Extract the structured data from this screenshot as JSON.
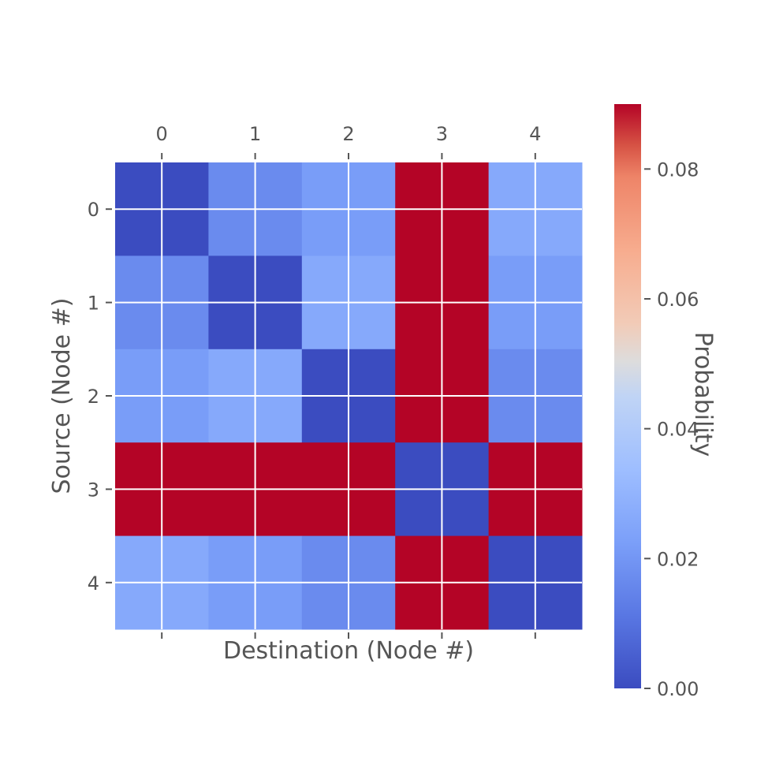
{
  "chart_data": {
    "type": "heatmap",
    "title": "",
    "xlabel": "Destination (Node #)",
    "ylabel": "Source (Node #)",
    "x_categories": [
      "0",
      "1",
      "2",
      "3",
      "4"
    ],
    "y_categories": [
      "0",
      "1",
      "2",
      "3",
      "4"
    ],
    "values": [
      [
        0.0,
        0.017,
        0.022,
        0.09,
        0.026
      ],
      [
        0.017,
        0.0,
        0.026,
        0.09,
        0.022
      ],
      [
        0.022,
        0.026,
        0.0,
        0.09,
        0.017
      ],
      [
        0.09,
        0.09,
        0.09,
        0.0,
        0.09
      ],
      [
        0.026,
        0.022,
        0.017,
        0.09,
        0.0
      ]
    ],
    "colorbar": {
      "label": "Probability",
      "range": [
        0.0,
        0.09
      ],
      "ticks": [
        0.0,
        0.02,
        0.04,
        0.06,
        0.08
      ],
      "tick_labels": [
        "0.00",
        "0.02",
        "0.04",
        "0.06",
        "0.08"
      ]
    },
    "colormap": "coolwarm",
    "grid": true,
    "x_ticks_position": "top"
  }
}
